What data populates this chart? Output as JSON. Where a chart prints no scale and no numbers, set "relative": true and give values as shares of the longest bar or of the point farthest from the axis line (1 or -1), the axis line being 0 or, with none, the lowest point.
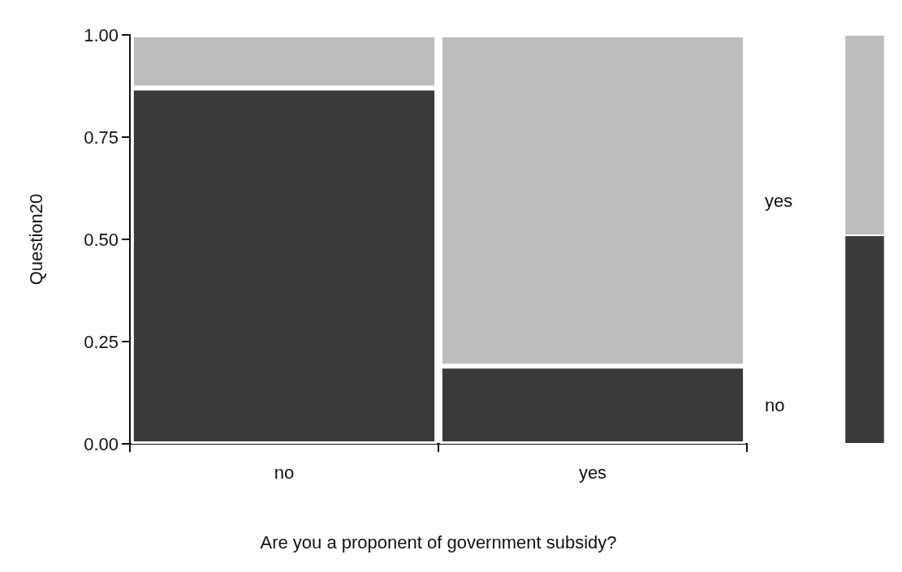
{
  "chart_data": [
    {
      "type": "bar",
      "stacked": true,
      "xlabel": "Are you a proponent of government subsidy?",
      "ylabel": "Question20",
      "categories": [
        "no",
        "yes"
      ],
      "series": [
        {
          "name": "no",
          "color": "#3a3a3a",
          "values": [
            0.87,
            0.19
          ]
        },
        {
          "name": "yes",
          "color": "#bdbdbd",
          "values": [
            0.13,
            0.81
          ]
        }
      ],
      "ylim": [
        0,
        1
      ],
      "yticks": [
        {
          "value": 0,
          "label": "0.00"
        },
        {
          "value": 0.25,
          "label": "0.25"
        },
        {
          "value": 0.5,
          "label": "0.50"
        },
        {
          "value": 0.75,
          "label": "0.75"
        },
        {
          "value": 1,
          "label": "1.00"
        }
      ],
      "legend": false,
      "grid": false
    },
    {
      "type": "bar",
      "stacked": true,
      "relative": true,
      "categories": [
        null
      ],
      "series": [
        {
          "color": "#3a3a3a",
          "values": [
            0.51
          ]
        },
        {
          "color": "#bdbdbd",
          "values": [
            0.49
          ]
        }
      ],
      "tick_labels": false,
      "legend": false,
      "grid": false
    }
  ]
}
